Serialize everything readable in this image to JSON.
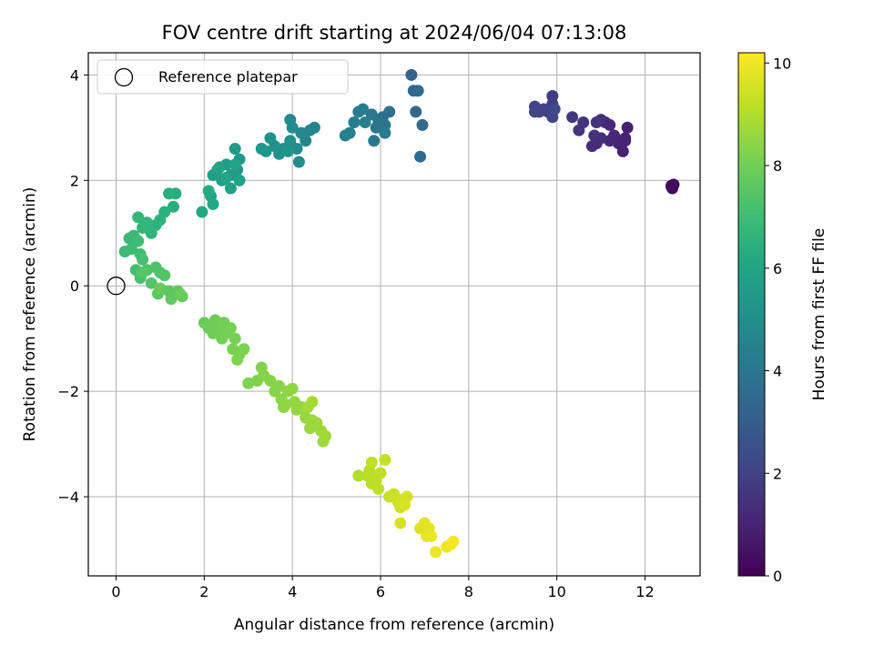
{
  "chart_data": {
    "type": "scatter",
    "title": "FOV centre drift starting at 2024/06/04 07:13:08",
    "xlabel": "Angular distance from reference (arcmin)",
    "ylabel": "Rotation from reference (arcmin)",
    "xlim": [
      -0.63,
      13.25
    ],
    "ylim": [
      -5.5,
      4.42
    ],
    "xticks": [
      0,
      2,
      4,
      6,
      8,
      10,
      12
    ],
    "yticks": [
      -4,
      -2,
      0,
      2,
      4
    ],
    "grid": true,
    "colormap": "viridis",
    "colorbar": {
      "label": "Hours from first FF file",
      "range": [
        0,
        10.2
      ],
      "ticks": [
        0,
        2,
        4,
        6,
        8,
        10
      ]
    },
    "legend": {
      "placement": "top-left",
      "entries": [
        "Reference platepar"
      ]
    },
    "reference_point": {
      "x": 0,
      "y": 0,
      "marker": "open-circle"
    },
    "points": [
      [
        12.6,
        1.9,
        0.15
      ],
      [
        12.62,
        1.85,
        0.2
      ],
      [
        12.65,
        1.92,
        0.25
      ],
      [
        12.6,
        1.88,
        0.3
      ],
      [
        11.6,
        3.0,
        0.9
      ],
      [
        11.55,
        2.75,
        0.95
      ],
      [
        11.5,
        2.55,
        1.0
      ],
      [
        11.4,
        2.7,
        1.05
      ],
      [
        11.3,
        2.85,
        1.1
      ],
      [
        11.2,
        2.75,
        1.15
      ],
      [
        11.1,
        3.1,
        1.2
      ],
      [
        11.0,
        2.8,
        1.25
      ],
      [
        10.9,
        2.7,
        1.3
      ],
      [
        10.8,
        2.65,
        1.35
      ],
      [
        10.85,
        2.85,
        1.4
      ],
      [
        11.0,
        3.15,
        1.45
      ],
      [
        10.9,
        3.1,
        1.5
      ],
      [
        10.6,
        3.1,
        1.55
      ],
      [
        10.5,
        2.95,
        1.6
      ],
      [
        10.35,
        3.2,
        1.65
      ],
      [
        11.55,
        2.8,
        1.0
      ],
      [
        11.2,
        3.05,
        1.12
      ],
      [
        9.9,
        3.6,
        1.8
      ],
      [
        9.9,
        3.45,
        1.85
      ],
      [
        9.8,
        3.3,
        1.9
      ],
      [
        9.7,
        3.35,
        1.95
      ],
      [
        9.6,
        3.3,
        2.0
      ],
      [
        9.5,
        3.4,
        2.05
      ],
      [
        9.9,
        3.2,
        2.1
      ],
      [
        9.5,
        3.3,
        2.15
      ],
      [
        9.95,
        3.35,
        2.2
      ],
      [
        6.7,
        4.0,
        3.3
      ],
      [
        6.75,
        3.7,
        3.4
      ],
      [
        6.85,
        3.7,
        3.45
      ],
      [
        6.8,
        3.3,
        3.5
      ],
      [
        6.95,
        3.05,
        3.55
      ],
      [
        6.9,
        2.45,
        3.6
      ],
      [
        6.2,
        3.3,
        3.8
      ],
      [
        6.05,
        3.2,
        3.85
      ],
      [
        6.1,
        3.05,
        3.9
      ],
      [
        5.95,
        3.15,
        3.95
      ],
      [
        5.9,
        3.0,
        4.0
      ],
      [
        5.8,
        3.25,
        4.05
      ],
      [
        5.85,
        2.75,
        4.1
      ],
      [
        6.1,
        2.9,
        4.15
      ],
      [
        5.6,
        3.35,
        4.2
      ],
      [
        5.5,
        3.3,
        4.25
      ],
      [
        5.4,
        3.1,
        4.3
      ],
      [
        5.3,
        2.9,
        4.35
      ],
      [
        5.2,
        2.85,
        4.4
      ],
      [
        5.65,
        3.1,
        4.45
      ],
      [
        4.5,
        3.0,
        4.6
      ],
      [
        4.4,
        2.95,
        4.65
      ],
      [
        4.3,
        2.75,
        4.7
      ],
      [
        4.2,
        2.9,
        4.75
      ],
      [
        4.0,
        3.0,
        4.8
      ],
      [
        3.95,
        3.15,
        4.85
      ],
      [
        4.1,
        2.6,
        4.9
      ],
      [
        4.15,
        2.35,
        4.95
      ],
      [
        3.95,
        2.75,
        5.0
      ],
      [
        3.8,
        2.6,
        5.05
      ],
      [
        3.7,
        2.5,
        5.1
      ],
      [
        3.6,
        2.65,
        5.15
      ],
      [
        3.5,
        2.8,
        5.2
      ],
      [
        3.4,
        2.55,
        5.25
      ],
      [
        3.3,
        2.6,
        5.3
      ],
      [
        3.9,
        2.55,
        5.35
      ],
      [
        2.8,
        2.4,
        5.4
      ],
      [
        2.7,
        2.6,
        5.45
      ],
      [
        2.75,
        2.2,
        5.5
      ],
      [
        2.6,
        2.1,
        5.55
      ],
      [
        2.5,
        2.3,
        5.6
      ],
      [
        2.4,
        2.0,
        5.65
      ],
      [
        2.3,
        2.2,
        5.7
      ],
      [
        2.2,
        2.1,
        5.75
      ],
      [
        2.6,
        1.85,
        5.8
      ],
      [
        2.8,
        2.0,
        5.85
      ],
      [
        2.35,
        2.25,
        5.9
      ],
      [
        2.7,
        2.3,
        5.95
      ],
      [
        2.5,
        2.05,
        6.0
      ],
      [
        2.15,
        1.7,
        6.05
      ],
      [
        2.2,
        1.55,
        6.1
      ],
      [
        1.95,
        1.4,
        6.15
      ],
      [
        2.1,
        1.8,
        6.2
      ],
      [
        1.35,
        1.75,
        6.3
      ],
      [
        1.3,
        1.5,
        6.35
      ],
      [
        1.2,
        1.75,
        6.4
      ],
      [
        1.1,
        1.4,
        6.45
      ],
      [
        1.0,
        1.25,
        6.5
      ],
      [
        0.9,
        1.15,
        6.55
      ],
      [
        0.8,
        1.0,
        6.6
      ],
      [
        0.7,
        1.2,
        6.65
      ],
      [
        0.6,
        1.1,
        6.7
      ],
      [
        0.5,
        1.3,
        6.75
      ],
      [
        0.4,
        0.95,
        6.8
      ],
      [
        0.3,
        0.9,
        6.85
      ],
      [
        0.2,
        0.65,
        6.9
      ],
      [
        0.35,
        0.7,
        6.95
      ],
      [
        0.5,
        0.85,
        7.0
      ],
      [
        0.55,
        0.6,
        7.05
      ],
      [
        0.45,
        0.3,
        7.1
      ],
      [
        0.6,
        0.5,
        7.15
      ],
      [
        0.55,
        0.15,
        7.2
      ],
      [
        0.7,
        0.3,
        7.25
      ],
      [
        0.9,
        0.35,
        7.3
      ],
      [
        1.0,
        0.25,
        7.35
      ],
      [
        1.1,
        0.2,
        7.4
      ],
      [
        0.8,
        0.05,
        7.45
      ],
      [
        0.6,
        0.25,
        7.5
      ],
      [
        0.95,
        -0.15,
        7.55
      ],
      [
        1.2,
        -0.1,
        7.6
      ],
      [
        1.25,
        -0.25,
        7.65
      ],
      [
        1.4,
        -0.1,
        7.7
      ],
      [
        1.5,
        -0.2,
        7.75
      ],
      [
        1.0,
        -0.05,
        7.8
      ],
      [
        1.45,
        -0.15,
        7.82
      ],
      [
        2.0,
        -0.7,
        7.9
      ],
      [
        2.1,
        -0.8,
        7.92
      ],
      [
        2.25,
        -0.65,
        7.95
      ],
      [
        2.3,
        -0.85,
        7.98
      ],
      [
        2.45,
        -0.7,
        8.0
      ],
      [
        2.5,
        -0.9,
        8.02
      ],
      [
        2.4,
        -1.0,
        8.05
      ],
      [
        2.6,
        -0.8,
        8.08
      ],
      [
        2.7,
        -1.0,
        8.1
      ],
      [
        2.65,
        -1.2,
        8.12
      ],
      [
        2.8,
        -1.3,
        8.15
      ],
      [
        2.9,
        -1.2,
        8.18
      ],
      [
        2.75,
        -1.4,
        8.2
      ],
      [
        3.0,
        -1.85,
        8.22
      ],
      [
        3.2,
        -1.8,
        8.25
      ],
      [
        3.3,
        -1.55,
        8.28
      ],
      [
        3.35,
        -1.7,
        8.3
      ],
      [
        3.5,
        -1.8,
        8.32
      ],
      [
        3.6,
        -2.0,
        8.35
      ],
      [
        3.7,
        -1.9,
        8.38
      ],
      [
        3.75,
        -2.15,
        8.4
      ],
      [
        3.8,
        -2.3,
        8.42
      ],
      [
        3.9,
        -2.0,
        8.45
      ],
      [
        3.85,
        -2.25,
        8.48
      ],
      [
        4.0,
        -1.95,
        8.5
      ],
      [
        4.05,
        -2.2,
        8.52
      ],
      [
        4.1,
        -2.35,
        8.55
      ],
      [
        4.2,
        -2.3,
        8.58
      ],
      [
        4.3,
        -2.5,
        8.6
      ],
      [
        4.4,
        -2.7,
        8.62
      ],
      [
        4.45,
        -2.55,
        8.65
      ],
      [
        4.55,
        -2.6,
        8.68
      ],
      [
        4.65,
        -2.75,
        8.7
      ],
      [
        4.7,
        -2.95,
        8.72
      ],
      [
        4.75,
        -2.85,
        8.75
      ],
      [
        4.35,
        -2.3,
        8.78
      ],
      [
        4.45,
        -2.2,
        8.8
      ],
      [
        2.2,
        -0.9,
        7.95
      ],
      [
        5.5,
        -3.6,
        9.0
      ],
      [
        5.7,
        -3.6,
        9.05
      ],
      [
        5.75,
        -3.5,
        9.1
      ],
      [
        5.8,
        -3.75,
        9.12
      ],
      [
        5.85,
        -3.6,
        9.15
      ],
      [
        5.9,
        -3.7,
        9.18
      ],
      [
        5.95,
        -3.85,
        9.2
      ],
      [
        6.0,
        -3.55,
        9.22
      ],
      [
        5.8,
        -3.35,
        9.25
      ],
      [
        6.1,
        -3.3,
        9.28
      ],
      [
        6.2,
        -4.0,
        9.3
      ],
      [
        6.3,
        -3.95,
        9.35
      ],
      [
        6.4,
        -4.1,
        9.4
      ],
      [
        6.45,
        -4.2,
        9.45
      ],
      [
        6.5,
        -4.05,
        9.5
      ],
      [
        6.6,
        -4.0,
        9.55
      ],
      [
        6.45,
        -4.5,
        9.6
      ],
      [
        6.55,
        -4.15,
        9.65
      ],
      [
        6.9,
        -4.6,
        9.7
      ],
      [
        7.0,
        -4.5,
        9.75
      ],
      [
        7.1,
        -4.6,
        9.8
      ],
      [
        7.05,
        -4.75,
        9.85
      ],
      [
        7.15,
        -4.75,
        9.9
      ],
      [
        7.25,
        -5.05,
        9.95
      ],
      [
        7.5,
        -4.95,
        10.0
      ],
      [
        7.6,
        -4.9,
        10.05
      ],
      [
        7.65,
        -4.85,
        10.1
      ]
    ]
  }
}
